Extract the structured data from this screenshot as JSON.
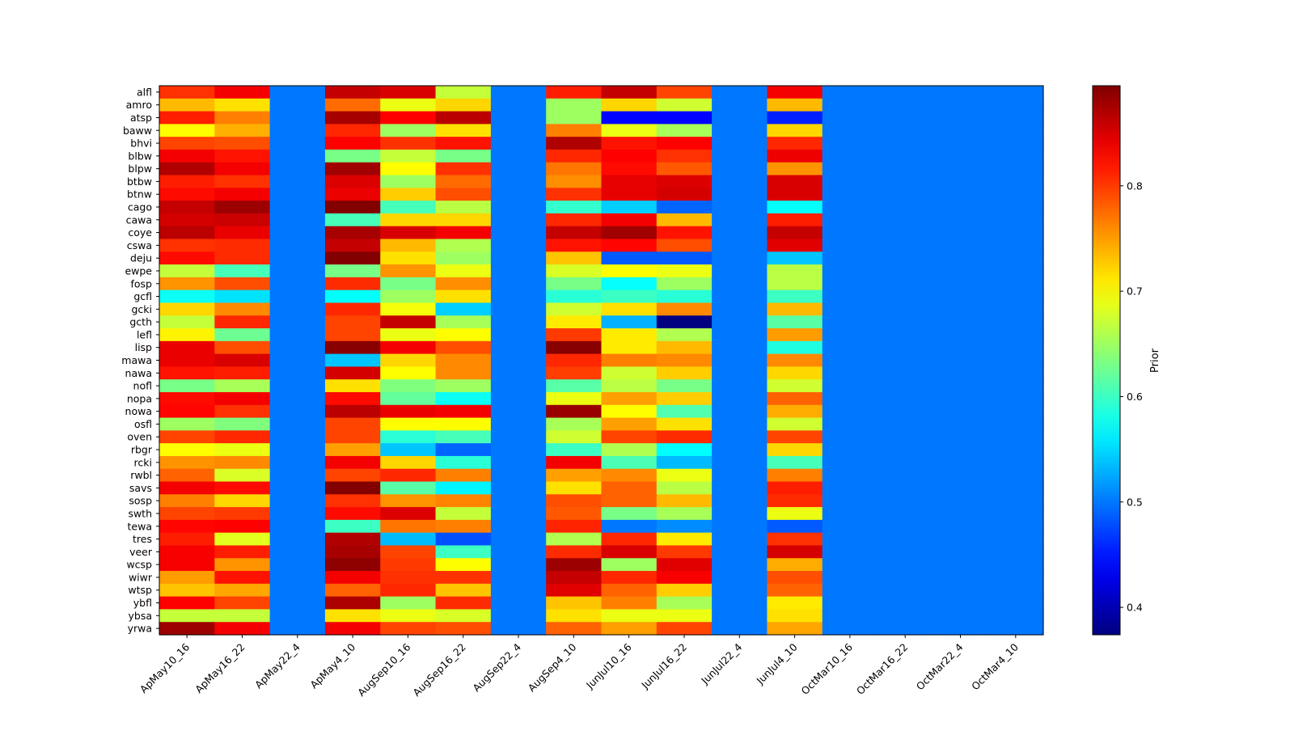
{
  "chart_data": {
    "type": "heatmap",
    "title": "",
    "xlabel": "",
    "ylabel": "",
    "colorbar_label": "Prior",
    "colormap": "jet",
    "vmin": 0.374,
    "vmax": 0.895,
    "colorbar_ticks": [
      0.4,
      0.5,
      0.6,
      0.7,
      0.8
    ],
    "colorbar_tick_labels": [
      "0.4",
      "0.5",
      "0.6",
      "0.7",
      "0.8"
    ],
    "columns": [
      "ApMay10_16",
      "ApMay16_22",
      "ApMay22_4",
      "ApMay4_10",
      "AugSep10_16",
      "AugSep16_22",
      "AugSep22_4",
      "AugSep4_10",
      "JunJul10_16",
      "JunJul16_22",
      "JunJul22_4",
      "JunJul4_10",
      "OctMar10_16",
      "OctMar16_22",
      "OctMar22_4",
      "OctMar4_10"
    ],
    "rows": [
      "alfl",
      "amro",
      "atsp",
      "baww",
      "bhvi",
      "blbw",
      "blpw",
      "btbw",
      "btnw",
      "cago",
      "cawa",
      "coye",
      "cswa",
      "deju",
      "ewpe",
      "fosp",
      "gcfl",
      "gcki",
      "gcth",
      "lefl",
      "lisp",
      "mawa",
      "nawa",
      "nofl",
      "nopa",
      "nowa",
      "osfl",
      "oven",
      "rbgr",
      "rcki",
      "rwbl",
      "savs",
      "sosp",
      "swth",
      "tewa",
      "tres",
      "veer",
      "wcsp",
      "wiwr",
      "wtsp",
      "ybfl",
      "ybsa",
      "yrwa"
    ],
    "values": [
      [
        0.805,
        0.835,
        0.5,
        0.86,
        0.85,
        0.67,
        0.5,
        0.815,
        0.86,
        0.795,
        0.5,
        0.835,
        0.5,
        0.5,
        0.5,
        0.5
      ],
      [
        0.735,
        0.715,
        0.5,
        0.775,
        0.69,
        0.72,
        0.5,
        0.65,
        0.72,
        0.675,
        0.5,
        0.735,
        0.5,
        0.5,
        0.5,
        0.5
      ],
      [
        0.815,
        0.765,
        0.5,
        0.875,
        0.83,
        0.865,
        0.5,
        0.65,
        0.44,
        0.44,
        0.5,
        0.455,
        0.5,
        0.5,
        0.5,
        0.5
      ],
      [
        0.7,
        0.74,
        0.5,
        0.81,
        0.65,
        0.715,
        0.5,
        0.765,
        0.69,
        0.655,
        0.5,
        0.72,
        0.5,
        0.5,
        0.5,
        0.5
      ],
      [
        0.795,
        0.79,
        0.5,
        0.83,
        0.805,
        0.82,
        0.5,
        0.87,
        0.82,
        0.83,
        0.5,
        0.81,
        0.5,
        0.5,
        0.5,
        0.5
      ],
      [
        0.835,
        0.82,
        0.5,
        0.63,
        0.67,
        0.63,
        0.5,
        0.81,
        0.83,
        0.805,
        0.5,
        0.838,
        0.5,
        0.5,
        0.5,
        0.5
      ],
      [
        0.87,
        0.835,
        0.5,
        0.878,
        0.7,
        0.805,
        0.5,
        0.77,
        0.825,
        0.785,
        0.5,
        0.755,
        0.5,
        0.5,
        0.5,
        0.5
      ],
      [
        0.815,
        0.805,
        0.5,
        0.848,
        0.65,
        0.775,
        0.5,
        0.758,
        0.842,
        0.848,
        0.5,
        0.85,
        0.5,
        0.5,
        0.5,
        0.5
      ],
      [
        0.825,
        0.835,
        0.5,
        0.84,
        0.725,
        0.79,
        0.5,
        0.805,
        0.842,
        0.852,
        0.5,
        0.85,
        0.5,
        0.5,
        0.5,
        0.5
      ],
      [
        0.86,
        0.88,
        0.5,
        0.893,
        0.605,
        0.665,
        0.5,
        0.595,
        0.545,
        0.49,
        0.5,
        0.57,
        0.5,
        0.5,
        0.5,
        0.5
      ],
      [
        0.852,
        0.857,
        0.5,
        0.605,
        0.72,
        0.72,
        0.5,
        0.81,
        0.835,
        0.735,
        0.5,
        0.815,
        0.5,
        0.5,
        0.5,
        0.5
      ],
      [
        0.865,
        0.84,
        0.5,
        0.875,
        0.85,
        0.835,
        0.5,
        0.86,
        0.878,
        0.82,
        0.5,
        0.86,
        0.5,
        0.5,
        0.5,
        0.5
      ],
      [
        0.805,
        0.808,
        0.5,
        0.86,
        0.735,
        0.66,
        0.5,
        0.82,
        0.828,
        0.79,
        0.5,
        0.845,
        0.5,
        0.5,
        0.5,
        0.5
      ],
      [
        0.825,
        0.808,
        0.5,
        0.893,
        0.715,
        0.65,
        0.5,
        0.73,
        0.485,
        0.485,
        0.5,
        0.54,
        0.5,
        0.5,
        0.5,
        0.5
      ],
      [
        0.67,
        0.605,
        0.5,
        0.63,
        0.755,
        0.69,
        0.5,
        0.68,
        0.7,
        0.69,
        0.5,
        0.665,
        0.5,
        0.5,
        0.5,
        0.5
      ],
      [
        0.755,
        0.79,
        0.5,
        0.808,
        0.63,
        0.757,
        0.5,
        0.63,
        0.572,
        0.65,
        0.5,
        0.665,
        0.5,
        0.5,
        0.5,
        0.5
      ],
      [
        0.575,
        0.555,
        0.5,
        0.57,
        0.65,
        0.715,
        0.5,
        0.59,
        0.6,
        0.59,
        0.5,
        0.6,
        0.5,
        0.5,
        0.5,
        0.5
      ],
      [
        0.72,
        0.76,
        0.5,
        0.81,
        0.695,
        0.545,
        0.5,
        0.675,
        0.715,
        0.76,
        0.5,
        0.735,
        0.5,
        0.5,
        0.5,
        0.5
      ],
      [
        0.67,
        0.81,
        0.5,
        0.795,
        0.86,
        0.655,
        0.5,
        0.71,
        0.53,
        0.375,
        0.5,
        0.615,
        0.5,
        0.5,
        0.5,
        0.5
      ],
      [
        0.705,
        0.625,
        0.5,
        0.795,
        0.69,
        0.7,
        0.5,
        0.8,
        0.71,
        0.66,
        0.5,
        0.75,
        0.5,
        0.5,
        0.5,
        0.5
      ],
      [
        0.84,
        0.79,
        0.5,
        0.89,
        0.835,
        0.79,
        0.5,
        0.89,
        0.71,
        0.735,
        0.5,
        0.585,
        0.5,
        0.5,
        0.5,
        0.5
      ],
      [
        0.84,
        0.85,
        0.5,
        0.54,
        0.72,
        0.76,
        0.5,
        0.81,
        0.765,
        0.76,
        0.5,
        0.76,
        0.5,
        0.5,
        0.5,
        0.5
      ],
      [
        0.82,
        0.815,
        0.5,
        0.852,
        0.7,
        0.76,
        0.5,
        0.798,
        0.675,
        0.725,
        0.5,
        0.72,
        0.5,
        0.5,
        0.5,
        0.5
      ],
      [
        0.63,
        0.655,
        0.5,
        0.715,
        0.635,
        0.65,
        0.5,
        0.615,
        0.665,
        0.63,
        0.5,
        0.675,
        0.5,
        0.5,
        0.5,
        0.5
      ],
      [
        0.825,
        0.835,
        0.5,
        0.825,
        0.62,
        0.575,
        0.5,
        0.69,
        0.748,
        0.725,
        0.5,
        0.78,
        0.5,
        0.5,
        0.5,
        0.5
      ],
      [
        0.828,
        0.805,
        0.5,
        0.865,
        0.84,
        0.835,
        0.5,
        0.882,
        0.7,
        0.61,
        0.5,
        0.742,
        0.5,
        0.5,
        0.5,
        0.5
      ],
      [
        0.65,
        0.635,
        0.5,
        0.795,
        0.7,
        0.7,
        0.5,
        0.655,
        0.748,
        0.715,
        0.5,
        0.675,
        0.5,
        0.5,
        0.5,
        0.5
      ],
      [
        0.795,
        0.81,
        0.5,
        0.795,
        0.59,
        0.605,
        0.5,
        0.675,
        0.795,
        0.808,
        0.5,
        0.795,
        0.5,
        0.5,
        0.5,
        0.5
      ],
      [
        0.7,
        0.69,
        0.5,
        0.748,
        0.54,
        0.49,
        0.5,
        0.6,
        0.66,
        0.57,
        0.5,
        0.72,
        0.5,
        0.5,
        0.5,
        0.5
      ],
      [
        0.755,
        0.76,
        0.5,
        0.835,
        0.72,
        0.59,
        0.5,
        0.835,
        0.607,
        0.535,
        0.5,
        0.605,
        0.5,
        0.5,
        0.5,
        0.5
      ],
      [
        0.78,
        0.68,
        0.5,
        0.795,
        0.81,
        0.765,
        0.5,
        0.748,
        0.76,
        0.69,
        0.5,
        0.765,
        0.5,
        0.5,
        0.5,
        0.5
      ],
      [
        0.835,
        0.825,
        0.5,
        0.893,
        0.615,
        0.565,
        0.5,
        0.715,
        0.78,
        0.665,
        0.5,
        0.815,
        0.5,
        0.5,
        0.5,
        0.5
      ],
      [
        0.765,
        0.72,
        0.5,
        0.805,
        0.755,
        0.762,
        0.5,
        0.79,
        0.78,
        0.735,
        0.5,
        0.808,
        0.5,
        0.5,
        0.5,
        0.5
      ],
      [
        0.795,
        0.8,
        0.5,
        0.825,
        0.848,
        0.67,
        0.5,
        0.785,
        0.63,
        0.655,
        0.5,
        0.69,
        0.5,
        0.5,
        0.5,
        0.5
      ],
      [
        0.828,
        0.83,
        0.5,
        0.6,
        0.77,
        0.765,
        0.5,
        0.812,
        0.5,
        0.51,
        0.5,
        0.485,
        0.5,
        0.5,
        0.5,
        0.5
      ],
      [
        0.815,
        0.685,
        0.5,
        0.87,
        0.535,
        0.48,
        0.5,
        0.66,
        0.81,
        0.71,
        0.5,
        0.805,
        0.5,
        0.5,
        0.5,
        0.5
      ],
      [
        0.833,
        0.815,
        0.5,
        0.875,
        0.795,
        0.6,
        0.5,
        0.808,
        0.85,
        0.8,
        0.5,
        0.852,
        0.5,
        0.5,
        0.5,
        0.5
      ],
      [
        0.833,
        0.755,
        0.5,
        0.887,
        0.8,
        0.7,
        0.5,
        0.88,
        0.65,
        0.845,
        0.5,
        0.742,
        0.5,
        0.5,
        0.5,
        0.5
      ],
      [
        0.75,
        0.82,
        0.5,
        0.835,
        0.805,
        0.805,
        0.5,
        0.86,
        0.81,
        0.833,
        0.5,
        0.79,
        0.5,
        0.5,
        0.5,
        0.5
      ],
      [
        0.73,
        0.745,
        0.5,
        0.78,
        0.81,
        0.73,
        0.5,
        0.845,
        0.78,
        0.725,
        0.5,
        0.78,
        0.5,
        0.5,
        0.5,
        0.5
      ],
      [
        0.83,
        0.795,
        0.5,
        0.873,
        0.65,
        0.808,
        0.5,
        0.73,
        0.765,
        0.655,
        0.5,
        0.71,
        0.5,
        0.5,
        0.5,
        0.5
      ],
      [
        0.67,
        0.67,
        0.5,
        0.715,
        0.69,
        0.68,
        0.5,
        0.715,
        0.69,
        0.69,
        0.5,
        0.715,
        0.5,
        0.5,
        0.5,
        0.5
      ],
      [
        0.88,
        0.835,
        0.5,
        0.835,
        0.795,
        0.79,
        0.5,
        0.78,
        0.748,
        0.795,
        0.5,
        0.745,
        0.5,
        0.5,
        0.5,
        0.5
      ]
    ]
  }
}
